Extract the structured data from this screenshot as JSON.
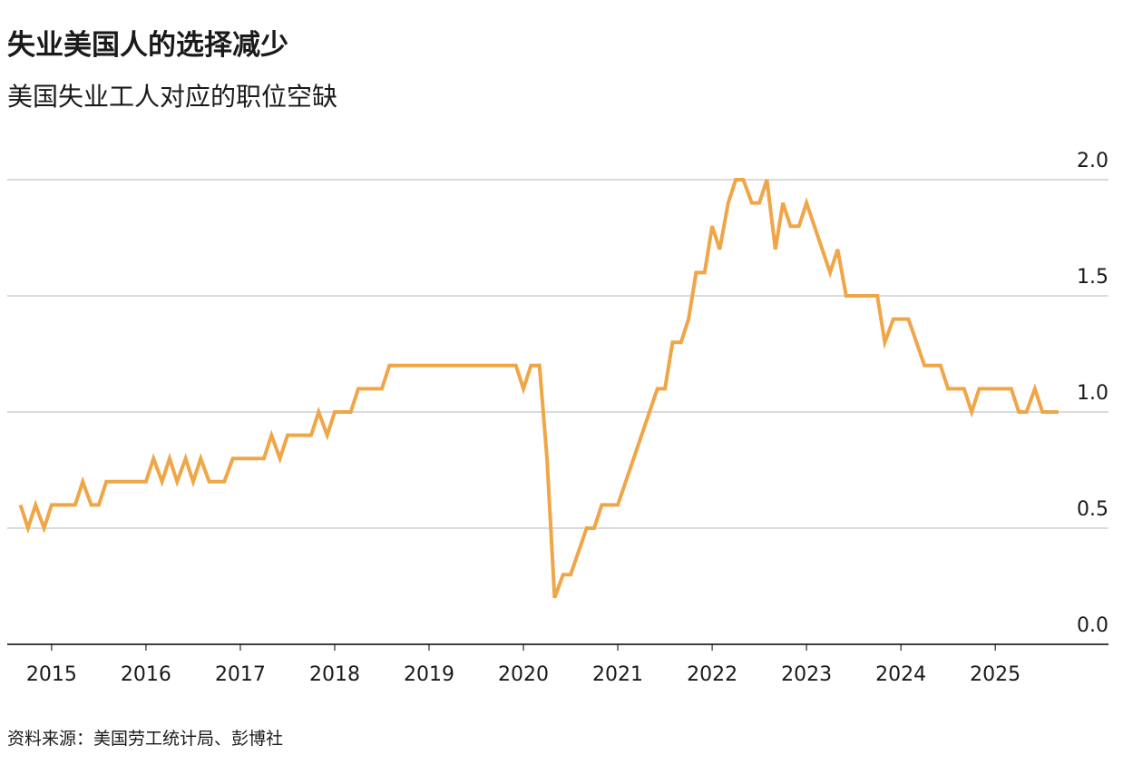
{
  "chart_data": {
    "type": "line",
    "title": "失业美国人的选择减少",
    "subtitle": "美国失业工人对应的职位空缺",
    "source": "资料来源：美国劳工统计局、彭博社",
    "x": [
      2014.67,
      2014.75,
      2014.83,
      2014.92,
      2015.0,
      2015.25,
      2015.33,
      2015.42,
      2015.5,
      2015.58,
      2016.0,
      2016.08,
      2016.17,
      2016.25,
      2016.33,
      2016.42,
      2016.5,
      2016.58,
      2016.67,
      2016.83,
      2016.92,
      2017.25,
      2017.33,
      2017.42,
      2017.5,
      2017.75,
      2017.83,
      2017.92,
      2018.0,
      2018.17,
      2018.25,
      2018.5,
      2018.58,
      2019.92,
      2020.0,
      2020.08,
      2020.17,
      2020.25,
      2020.33,
      2020.42,
      2020.5,
      2020.67,
      2020.75,
      2020.83,
      2021.0,
      2021.42,
      2021.5,
      2021.58,
      2021.67,
      2021.75,
      2021.83,
      2021.92,
      2022.0,
      2022.08,
      2022.17,
      2022.25,
      2022.33,
      2022.42,
      2022.5,
      2022.58,
      2022.67,
      2022.75,
      2022.83,
      2022.92,
      2023.0,
      2023.25,
      2023.33,
      2023.42,
      2023.75,
      2023.83,
      2023.92,
      2024.08,
      2024.25,
      2024.42,
      2024.5,
      2024.67,
      2024.75,
      2024.83,
      2025.17,
      2025.25,
      2025.33,
      2025.42,
      2025.5,
      2025.67
    ],
    "series": [
      {
        "color": "#f0a647",
        "values": [
          0.6,
          0.5,
          0.6,
          0.5,
          0.6,
          0.6,
          0.7,
          0.6,
          0.6,
          0.7,
          0.7,
          0.8,
          0.7,
          0.8,
          0.7,
          0.8,
          0.7,
          0.8,
          0.7,
          0.7,
          0.8,
          0.8,
          0.9,
          0.8,
          0.9,
          0.9,
          1.0,
          0.9,
          1.0,
          1.0,
          1.1,
          1.1,
          1.2,
          1.2,
          1.1,
          1.2,
          1.2,
          0.8,
          0.2,
          0.3,
          0.3,
          0.5,
          0.5,
          0.6,
          0.6,
          1.1,
          1.1,
          1.3,
          1.3,
          1.4,
          1.6,
          1.6,
          1.8,
          1.7,
          1.9,
          2.0,
          2.0,
          1.9,
          1.9,
          2.0,
          1.7,
          1.9,
          1.8,
          1.8,
          1.9,
          1.6,
          1.7,
          1.5,
          1.5,
          1.3,
          1.4,
          1.4,
          1.2,
          1.2,
          1.1,
          1.1,
          1.0,
          1.1,
          1.1,
          1.0,
          1.0,
          1.1,
          1.0,
          1.0
        ]
      }
    ],
    "xlim": [
      2014.53,
      2026.2
    ],
    "xticks": [
      2015,
      2016,
      2017,
      2018,
      2019,
      2020,
      2021,
      2022,
      2023,
      2024,
      2025
    ],
    "ylim": [
      0,
      2
    ],
    "yticks": [
      {
        "value": 0,
        "label": "0.0"
      },
      {
        "value": 0.5,
        "label": "0.5"
      },
      {
        "value": 1,
        "label": "1.0"
      },
      {
        "value": 1.5,
        "label": "1.5"
      },
      {
        "value": 2,
        "label": "2.0"
      }
    ],
    "grid": true
  }
}
